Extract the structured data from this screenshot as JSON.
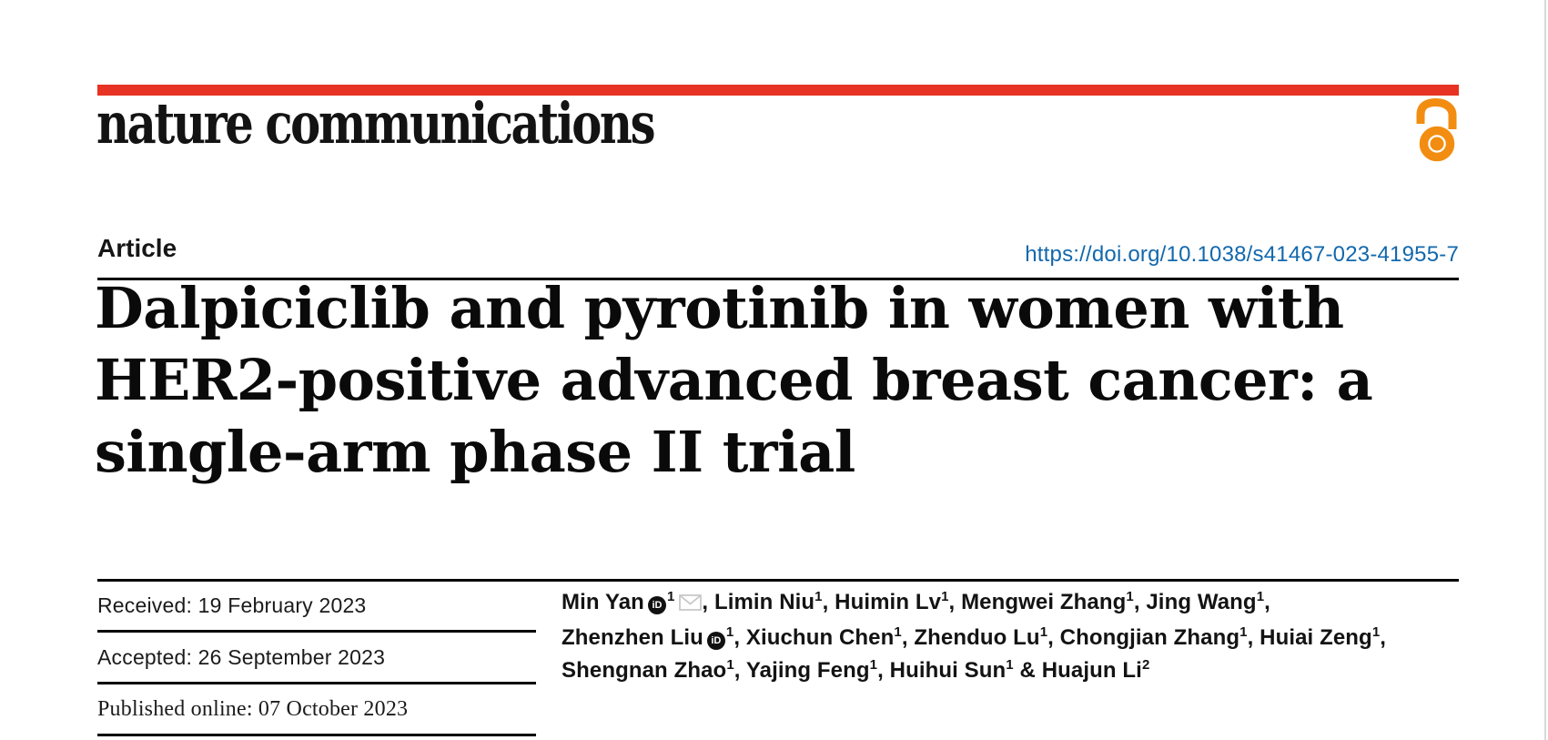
{
  "colors": {
    "brand_red": "#e63323",
    "open_access_orange": "#f28d11",
    "link_blue": "#1268ad",
    "text_black": "#141414",
    "rule_black": "#000000",
    "mail_gray": "#c6c6c6"
  },
  "masthead": {
    "journal_name": "nature communications",
    "open_access_icon": "open-access-padlock-icon"
  },
  "article_header": {
    "kicker": "Article",
    "doi_link": "https://doi.org/10.1038/s41467-023-41955-7",
    "title_lines": [
      "Dalpiciclib and pyrotinib in women with",
      "HER2-positive advanced breast cancer: a",
      "single-arm phase II trial"
    ]
  },
  "dates": [
    {
      "text": "Received: 19 February 2023"
    },
    {
      "text": "Accepted: 26 September 2023"
    },
    {
      "text": "Published online: 07 October 2023"
    }
  ],
  "authors": {
    "lines": [
      [
        {
          "t": "text",
          "v": "Min Yan"
        },
        {
          "t": "orcid"
        },
        {
          "t": "sup",
          "v": "1"
        },
        {
          "t": "mail"
        },
        {
          "t": "text",
          "v": ", Limin Niu"
        },
        {
          "t": "sup",
          "v": "1"
        },
        {
          "t": "text",
          "v": ", Huimin Lv"
        },
        {
          "t": "sup",
          "v": "1"
        },
        {
          "t": "text",
          "v": ", Mengwei Zhang"
        },
        {
          "t": "sup",
          "v": "1"
        },
        {
          "t": "text",
          "v": ", Jing Wang"
        },
        {
          "t": "sup",
          "v": "1"
        },
        {
          "t": "text",
          "v": ","
        }
      ],
      [
        {
          "t": "text",
          "v": "Zhenzhen Liu"
        },
        {
          "t": "orcid"
        },
        {
          "t": "sup",
          "v": "1"
        },
        {
          "t": "text",
          "v": ", Xiuchun Chen"
        },
        {
          "t": "sup",
          "v": "1"
        },
        {
          "t": "text",
          "v": ", Zhenduo Lu"
        },
        {
          "t": "sup",
          "v": "1"
        },
        {
          "t": "text",
          "v": ", Chongjian Zhang"
        },
        {
          "t": "sup",
          "v": "1"
        },
        {
          "t": "text",
          "v": ", Huiai Zeng"
        },
        {
          "t": "sup",
          "v": "1"
        },
        {
          "t": "text",
          "v": ","
        }
      ],
      [
        {
          "t": "text",
          "v": "Shengnan Zhao"
        },
        {
          "t": "sup",
          "v": "1"
        },
        {
          "t": "text",
          "v": ", Yajing Feng"
        },
        {
          "t": "sup",
          "v": "1"
        },
        {
          "t": "text",
          "v": ", Huihui Sun"
        },
        {
          "t": "sup",
          "v": "1"
        },
        {
          "t": "text",
          "v": " & Huajun Li"
        },
        {
          "t": "sup",
          "v": "2"
        }
      ]
    ]
  }
}
